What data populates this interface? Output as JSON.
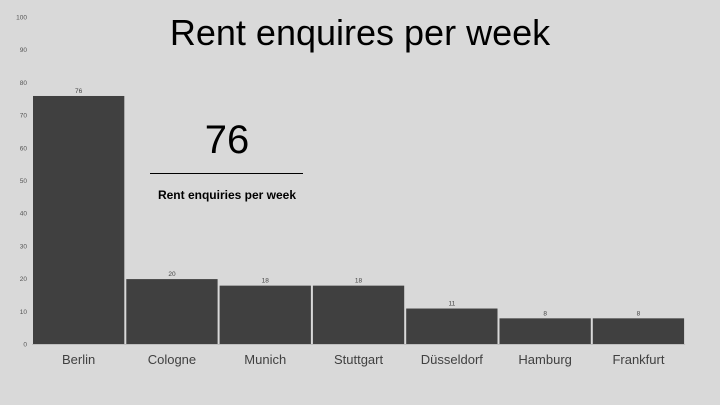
{
  "chart_data": {
    "type": "bar",
    "title": "Rent enquires per week",
    "categories": [
      "Berlin",
      "Cologne",
      "Munich",
      "Stuttgart",
      "Düsseldorf",
      "Hamburg",
      "Frankfurt"
    ],
    "values": [
      76,
      20,
      18,
      18,
      11,
      8,
      8
    ],
    "data_labels": [
      "76",
      "20",
      "18",
      "18",
      "11",
      "8",
      "8"
    ],
    "ylim": [
      0,
      100
    ],
    "yticks": [
      "0",
      "10",
      "20",
      "30",
      "40",
      "50",
      "60",
      "70",
      "80",
      "90",
      "100"
    ],
    "grid": false,
    "legend": "none",
    "bar_color": "#404040",
    "background": "#d9d9d9"
  },
  "kpi": {
    "value": "76",
    "label": "Rent enquiries per week"
  }
}
